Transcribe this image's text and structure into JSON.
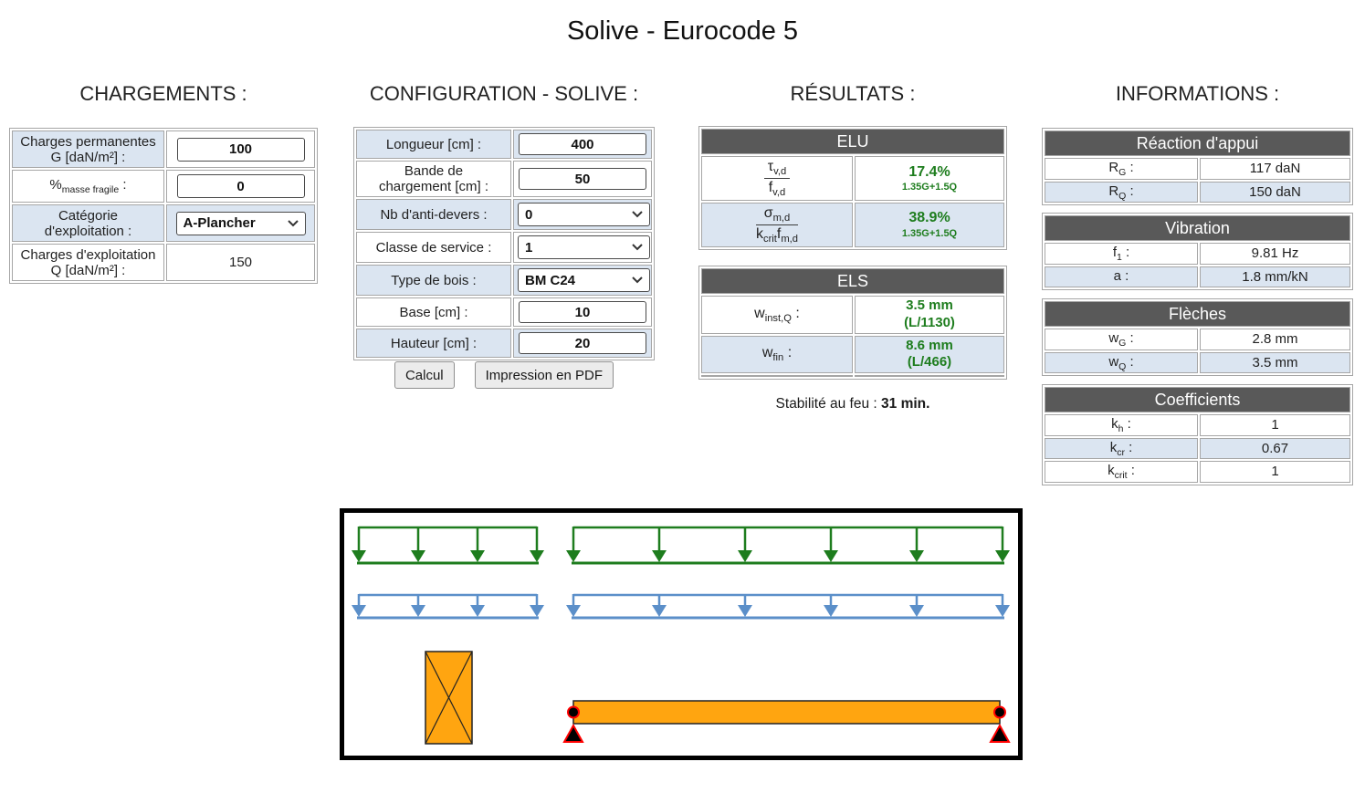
{
  "page_title": "Solive - Eurocode 5",
  "chargements": {
    "heading": "CHARGEMENTS :",
    "rows": [
      {
        "line1": "Charges permanentes",
        "line2": "G [daN/m²] :",
        "value": "100"
      },
      {
        "base": "%",
        "sub": "masse fragile",
        "colon": " :",
        "value": "0"
      },
      {
        "line1": "Catégorie",
        "line2": "d'exploitation :",
        "value": "A-Plancher"
      },
      {
        "line1": "Charges d'exploitation",
        "line2": "Q [daN/m²] :",
        "value": "150"
      }
    ]
  },
  "configuration": {
    "heading": "CONFIGURATION - SOLIVE :",
    "rows": [
      {
        "label": "Longueur [cm] :",
        "value": "400"
      },
      {
        "line1": "Bande de",
        "line2": "chargement [cm] :",
        "value": "50"
      },
      {
        "label": "Nb d'anti-devers :",
        "value": "0"
      },
      {
        "label": "Classe de service :",
        "value": "1"
      },
      {
        "label": "Type de bois :",
        "value": "BM C24"
      },
      {
        "label": "Base [cm] :",
        "value": "10"
      },
      {
        "label": "Hauteur [cm] :",
        "value": "20"
      }
    ],
    "buttons": {
      "calc": "Calcul",
      "pdf": "Impression en PDF"
    }
  },
  "resultats": {
    "heading": "RÉSULTATS :",
    "elu": {
      "header": "ELU",
      "rows": [
        {
          "num_base": "τ",
          "num_sub": "v,d",
          "den_base": "f",
          "den_sub": "v,d",
          "value": "17.4%",
          "combo": "1.35G+1.5Q"
        },
        {
          "num_base": "σ",
          "num_sub": "m,d",
          "den_base1": "k",
          "den_sub1": "crit",
          "den_base2": "f",
          "den_sub2": "m,d",
          "value": "38.9%",
          "combo": "1.35G+1.5Q"
        }
      ]
    },
    "els": {
      "header": "ELS",
      "rows": [
        {
          "base": "w",
          "sub": "inst,Q",
          "colon": " :",
          "value": "3.5 mm",
          "ratio": "(L/1130)"
        },
        {
          "base": "w",
          "sub": "fin",
          "colon": " :",
          "value": "8.6 mm",
          "ratio": "(L/466)"
        }
      ]
    },
    "fire": {
      "prefix": "Stabilité au feu : ",
      "value": "31 min."
    }
  },
  "informations": {
    "heading": "INFORMATIONS :",
    "tables": [
      {
        "header": "Réaction d'appui",
        "rows": [
          {
            "base": "R",
            "sub": "G",
            "colon": " :",
            "value": "117 daN"
          },
          {
            "base": "R",
            "sub": "Q",
            "colon": " :",
            "value": "150 daN"
          }
        ]
      },
      {
        "header": "Vibration",
        "rows": [
          {
            "base": "f",
            "sub": "1",
            "colon": " :",
            "value": "9.81 Hz"
          },
          {
            "base": "a",
            "sub": "",
            "colon": " :",
            "value": "1.8 mm/kN"
          }
        ]
      },
      {
        "header": "Flèches",
        "rows": [
          {
            "base": "w",
            "sub": "G",
            "colon": " :",
            "value": "2.8 mm"
          },
          {
            "base": "w",
            "sub": "Q",
            "colon": " :",
            "value": "3.5 mm"
          }
        ]
      },
      {
        "header": "Coefficients",
        "rows": [
          {
            "base": "k",
            "sub": "h",
            "colon": " :",
            "value": "1"
          },
          {
            "base": "k",
            "sub": "cr",
            "colon": " :",
            "value": "0.67"
          },
          {
            "base": "k",
            "sub": "crit",
            "colon": " :",
            "value": "1"
          }
        ]
      }
    ]
  },
  "diagram": {
    "permanent_load_color": "#1e7d1e",
    "variable_load_color": "#5b8fc9",
    "beam_color": "#ffa510",
    "support_fill": "#000000",
    "support_stroke": "#ff0000",
    "left_diagram_arrows": 4,
    "right_diagram_arrows": 6
  },
  "colors": {
    "table_header_bg": "#595959",
    "table_header_text": "#ffffff",
    "row_highlight": "#dbe5f1",
    "result_green": "#1e7d1e",
    "table_border": "#a6a6a6"
  }
}
